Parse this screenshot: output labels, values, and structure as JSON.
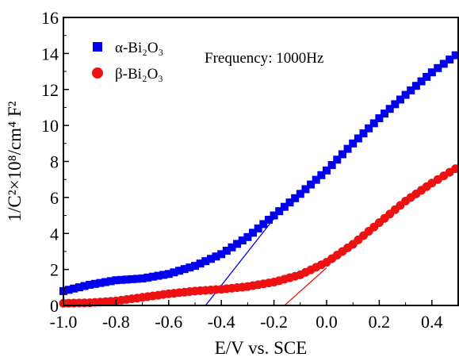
{
  "chart_data": {
    "type": "scatter",
    "title": "",
    "xlabel": "E/V vs. SCE",
    "ylabel": "1/C²×10⁸/cm⁴ F²",
    "xlim": [
      -1.0,
      0.5
    ],
    "ylim": [
      0,
      16
    ],
    "xticks": [
      -1.0,
      -0.8,
      -0.6,
      -0.4,
      -0.2,
      0.0,
      0.2,
      0.4
    ],
    "xtick_labels": [
      "-1.0",
      "-0.8",
      "-0.6",
      "-0.4",
      "-0.2",
      "0.0",
      "0.2",
      "0.4"
    ],
    "yticks": [
      0,
      2,
      4,
      6,
      8,
      10,
      12,
      14,
      16
    ],
    "ytick_labels": [
      "0",
      "2",
      "4",
      "6",
      "8",
      "10",
      "12",
      "14",
      "16"
    ],
    "grid": false,
    "legend_position": "top-left",
    "annotation": "Frequency: 1000Hz",
    "series": [
      {
        "name": "α-Bi₂O₃",
        "marker": "square",
        "color": "#0000ee",
        "points": [
          [
            -1.0,
            0.8
          ],
          [
            -0.9,
            1.15
          ],
          [
            -0.8,
            1.4
          ],
          [
            -0.7,
            1.5
          ],
          [
            -0.6,
            1.75
          ],
          [
            -0.5,
            2.2
          ],
          [
            -0.4,
            2.85
          ],
          [
            -0.3,
            3.8
          ],
          [
            -0.2,
            5.0
          ],
          [
            -0.1,
            6.2
          ],
          [
            0.0,
            7.5
          ],
          [
            0.1,
            9.0
          ],
          [
            0.2,
            10.4
          ],
          [
            0.3,
            11.7
          ],
          [
            0.4,
            12.95
          ],
          [
            0.49,
            13.9
          ]
        ],
        "fit_line": [
          [
            -0.46,
            0.0
          ],
          [
            -0.18,
            5.2
          ]
        ]
      },
      {
        "name": "β-Bi₂O₃",
        "marker": "circle",
        "color": "#ee1111",
        "points": [
          [
            -1.0,
            0.12
          ],
          [
            -0.9,
            0.15
          ],
          [
            -0.8,
            0.25
          ],
          [
            -0.7,
            0.45
          ],
          [
            -0.6,
            0.65
          ],
          [
            -0.5,
            0.8
          ],
          [
            -0.4,
            0.9
          ],
          [
            -0.3,
            1.05
          ],
          [
            -0.2,
            1.3
          ],
          [
            -0.1,
            1.7
          ],
          [
            0.0,
            2.4
          ],
          [
            0.1,
            3.4
          ],
          [
            0.2,
            4.6
          ],
          [
            0.3,
            5.8
          ],
          [
            0.4,
            6.8
          ],
          [
            0.49,
            7.6
          ]
        ],
        "fit_line": [
          [
            -0.16,
            0.0
          ],
          [
            0.0,
            2.1
          ]
        ]
      }
    ]
  }
}
